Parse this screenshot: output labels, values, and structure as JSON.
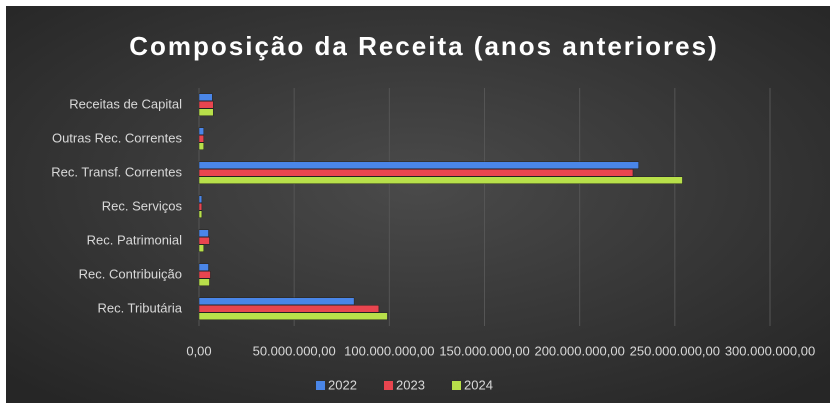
{
  "chart_data": {
    "type": "hbar",
    "title": "Composição da Receita (anos anteriores)",
    "categories": [
      "Receitas de Capital",
      "Outras Rec. Correntes",
      "Rec. Transf. Correntes",
      "Rec. Serviços",
      "Rec. Patrimonial",
      "Rec. Contribuição",
      "Rec. Tributária"
    ],
    "series": [
      {
        "name": "2022",
        "color": "#4a86e8",
        "values": [
          7000000,
          2500000,
          231000000,
          1500000,
          5000000,
          5000000,
          81500000
        ]
      },
      {
        "name": "2023",
        "color": "#e8454f",
        "values": [
          7500000,
          2500000,
          228000000,
          1500000,
          5500000,
          6000000,
          94500000
        ]
      },
      {
        "name": "2024",
        "color": "#b8e04a",
        "values": [
          7500000,
          2500000,
          254000000,
          1500000,
          2500000,
          5500000,
          99000000
        ]
      }
    ],
    "xlim": [
      0,
      300000000
    ],
    "xticks": [
      {
        "value": 0,
        "label": "0,00"
      },
      {
        "value": 50000000,
        "label": "50.000.000,00"
      },
      {
        "value": 100000000,
        "label": "100.000.000,00"
      },
      {
        "value": 150000000,
        "label": "150.000.000,00"
      },
      {
        "value": 200000000,
        "label": "200.000.000,00"
      },
      {
        "value": 250000000,
        "label": "250.000.000,00"
      },
      {
        "value": 300000000,
        "label": "300.000.000,00"
      }
    ],
    "grid": true,
    "legend": "bottom"
  }
}
